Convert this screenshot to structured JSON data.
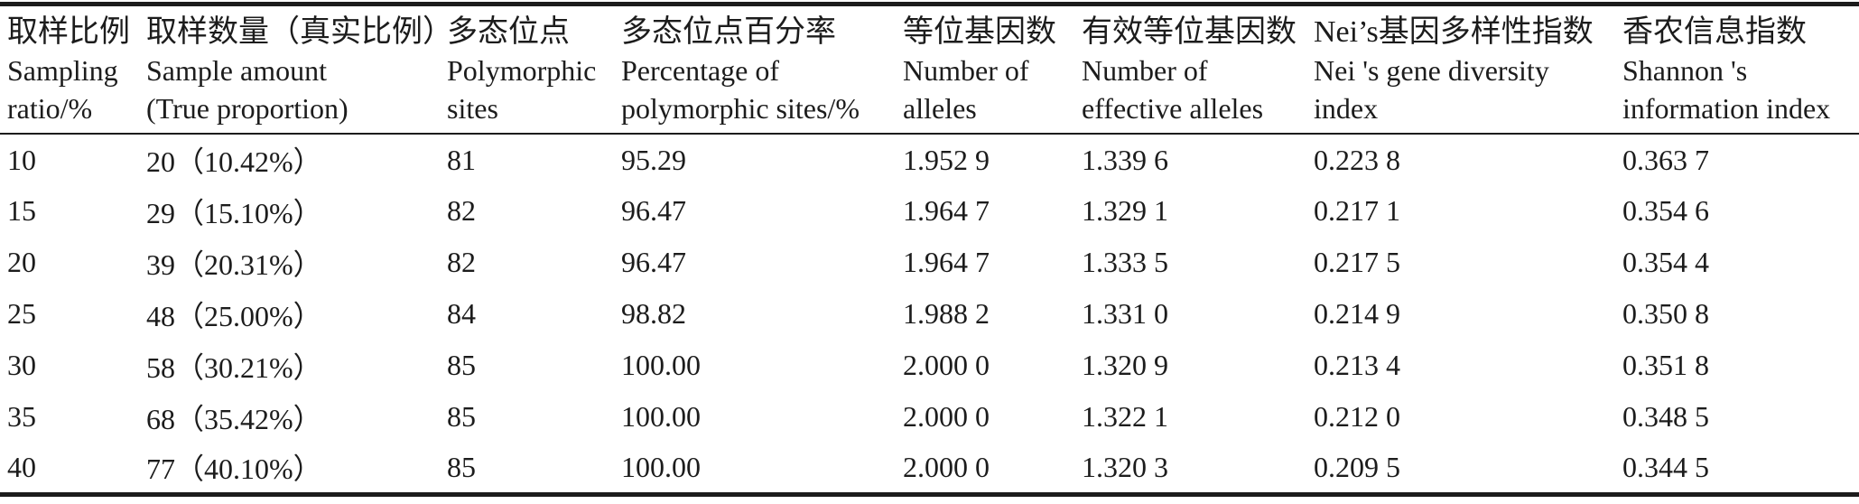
{
  "colors": {
    "ink": "#1c1c1c",
    "background": "#ffffff"
  },
  "table": {
    "columns": [
      {
        "key": "sampling-ratio",
        "lines": [
          "取样比例",
          "Sampling",
          "ratio/%"
        ]
      },
      {
        "key": "sample-amount",
        "lines": [
          "取样数量（真实比例）",
          "Sample amount",
          "(True proportion)"
        ]
      },
      {
        "key": "polymorphic-sites",
        "lines": [
          "多态位点",
          "Polymorphic",
          "sites"
        ]
      },
      {
        "key": "percentage-polymorphic-sites",
        "lines": [
          "多态位点百分率",
          "Percentage of",
          "polymorphic sites/%"
        ]
      },
      {
        "key": "number-of-alleles",
        "lines": [
          "等位基因数",
          "Number of",
          "alleles"
        ]
      },
      {
        "key": "number-of-effective-alleles",
        "lines": [
          "有效等位基因数",
          "Number of",
          "effective alleles"
        ]
      },
      {
        "key": "nei-gene-diversity-index",
        "lines": [
          "Nei’s基因多样性指数",
          "Nei 's gene diversity",
          "index"
        ]
      },
      {
        "key": "shannon-information-index",
        "lines": [
          "香农信息指数",
          "Shannon 's",
          "information index"
        ]
      }
    ],
    "rows": [
      [
        "10",
        "20（10.42%）",
        "81",
        "95.29",
        "1.952 9",
        "1.339 6",
        "0.223 8",
        "0.363 7"
      ],
      [
        "15",
        "29（15.10%）",
        "82",
        "96.47",
        "1.964 7",
        "1.329 1",
        "0.217 1",
        "0.354 6"
      ],
      [
        "20",
        "39（20.31%）",
        "82",
        "96.47",
        "1.964 7",
        "1.333 5",
        "0.217 5",
        "0.354 4"
      ],
      [
        "25",
        "48（25.00%）",
        "84",
        "98.82",
        "1.988 2",
        "1.331 0",
        "0.214 9",
        "0.350 8"
      ],
      [
        "30",
        "58（30.21%）",
        "85",
        "100.00",
        "2.000 0",
        "1.320 9",
        "0.213 4",
        "0.351 8"
      ],
      [
        "35",
        "68（35.42%）",
        "85",
        "100.00",
        "2.000 0",
        "1.322 1",
        "0.212 0",
        "0.348 5"
      ],
      [
        "40",
        "77（40.10%）",
        "85",
        "100.00",
        "2.000 0",
        "1.320 3",
        "0.209 5",
        "0.344 5"
      ]
    ]
  }
}
